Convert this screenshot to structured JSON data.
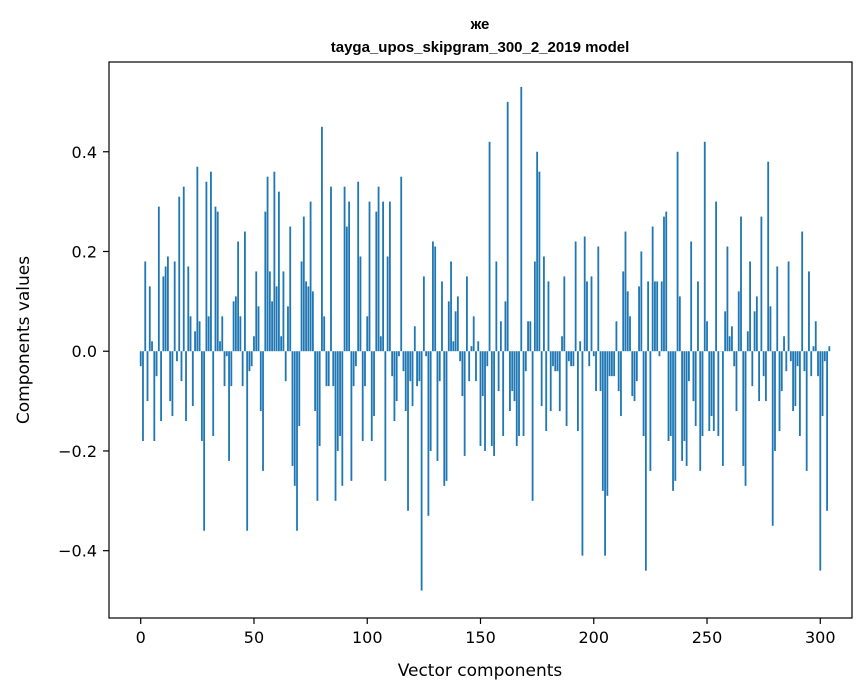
{
  "chart_data": {
    "type": "bar",
    "title": "же",
    "subtitle": "tayga_upos_skipgram_300_2_2019 model",
    "xlabel": "Vector components",
    "ylabel": "Components values",
    "xlim": [
      -14,
      314
    ],
    "ylim": [
      -0.535,
      0.58
    ],
    "x_ticks": [
      0,
      50,
      100,
      150,
      200,
      250,
      300
    ],
    "y_ticks": [
      -0.4,
      -0.2,
      0.0,
      0.2,
      0.4
    ],
    "y_tick_labels": [
      "−0.4",
      "−0.2",
      "0.0",
      "0.2",
      "0.4"
    ],
    "bar_color": "#1f77b4",
    "grid": false,
    "values": [
      -0.03,
      -0.18,
      0.18,
      -0.1,
      0.13,
      0.02,
      -0.18,
      -0.05,
      0.29,
      -0.14,
      0.15,
      0.17,
      0.19,
      -0.1,
      -0.13,
      0.18,
      -0.02,
      0.31,
      -0.06,
      0.33,
      -0.14,
      0.17,
      0.07,
      -0.11,
      0.04,
      0.37,
      0.06,
      -0.18,
      -0.36,
      0.34,
      0.07,
      0.36,
      -0.17,
      0.29,
      0.28,
      0.02,
      0.07,
      -0.07,
      -0.01,
      -0.22,
      -0.07,
      0.1,
      0.11,
      0.22,
      0.07,
      -0.07,
      0.24,
      -0.36,
      -0.04,
      -0.03,
      0.03,
      0.16,
      0.09,
      -0.12,
      -0.24,
      0.28,
      0.35,
      0.16,
      0.1,
      0.36,
      0.13,
      0.32,
      0.03,
      0.16,
      -0.06,
      0.09,
      0.25,
      -0.23,
      -0.27,
      -0.36,
      -0.15,
      0.18,
      0.27,
      0.14,
      0.13,
      0.3,
      0.12,
      -0.12,
      -0.3,
      -0.19,
      0.45,
      0.07,
      -0.07,
      -0.07,
      0.33,
      -0.07,
      -0.3,
      -0.2,
      -0.17,
      -0.27,
      0.33,
      0.25,
      0.3,
      -0.26,
      -0.07,
      -0.03,
      0.34,
      0.19,
      -0.18,
      -0.07,
      0.07,
      0.3,
      -0.18,
      -0.13,
      0.28,
      0.33,
      0.03,
      0.3,
      -0.26,
      0.19,
      0.3,
      -0.05,
      -0.14,
      -0.1,
      -0.01,
      0.35,
      -0.04,
      -0.12,
      -0.32,
      -0.06,
      -0.11,
      0.05,
      -0.07,
      -0.06,
      -0.48,
      0.15,
      -0.01,
      -0.33,
      -0.2,
      0.22,
      0.21,
      -0.22,
      -0.06,
      0.14,
      -0.27,
      -0.26,
      0.1,
      0.18,
      0.02,
      0.08,
      0.11,
      -0.02,
      -0.09,
      -0.21,
      0.15,
      -0.06,
      0.01,
      0.07,
      -0.06,
      0.02,
      -0.19,
      -0.09,
      -0.2,
      -0.03,
      0.42,
      -0.19,
      -0.21,
      0.18,
      -0.08,
      0.06,
      -0.17,
      0.1,
      0.5,
      -0.12,
      -0.08,
      -0.1,
      -0.19,
      -0.17,
      0.53,
      -0.17,
      -0.04,
      0.06,
      0.06,
      -0.3,
      0.18,
      0.4,
      0.36,
      -0.11,
      0.19,
      -0.16,
      0.14,
      -0.12,
      -0.03,
      -0.04,
      -0.04,
      -0.12,
      0.03,
      0.15,
      -0.15,
      -0.02,
      -0.03,
      -0.03,
      0.22,
      -0.16,
      0.02,
      -0.41,
      0.23,
      0.14,
      -0.03,
      0.15,
      -0.01,
      -0.08,
      0.21,
      -0.08,
      -0.28,
      -0.41,
      -0.29,
      -0.05,
      -0.05,
      -0.05,
      0.06,
      -0.08,
      -0.13,
      0.16,
      0.24,
      0.12,
      0.07,
      -0.09,
      -0.1,
      -0.06,
      0.13,
      0.2,
      -0.17,
      -0.44,
      0.14,
      -0.24,
      0.25,
      0.14,
      0.14,
      -0.01,
      0.14,
      0.27,
      0.28,
      -0.18,
      -0.17,
      -0.28,
      -0.26,
      0.4,
      0.11,
      -0.22,
      -0.18,
      -0.23,
      -0.06,
      0.22,
      -0.1,
      -0.15,
      0.14,
      -0.24,
      -0.17,
      0.42,
      0.06,
      -0.16,
      -0.13,
      -0.16,
      0.3,
      -0.17,
      0.0,
      -0.23,
      0.08,
      0.21,
      0.03,
      0.05,
      -0.03,
      -0.12,
      0.12,
      0.27,
      -0.23,
      -0.27,
      0.04,
      0.18,
      -0.07,
      0.08,
      0.11,
      -0.1,
      0.27,
      -0.05,
      -0.1,
      0.38,
      0.09,
      -0.35,
      -0.2,
      0.17,
      -0.16,
      -0.08,
      0.03,
      -0.04,
      0.18,
      -0.02,
      -0.12,
      -0.11,
      -0.03,
      -0.17,
      0.24,
      -0.04,
      -0.24,
      0.16,
      -0.05,
      0.01,
      0.06,
      -0.05,
      -0.44,
      -0.13,
      -0.02,
      -0.32,
      0.01
    ]
  }
}
